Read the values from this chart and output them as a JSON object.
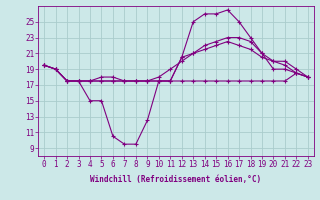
{
  "line1": {
    "x": [
      0,
      1,
      2,
      3,
      4,
      5,
      6,
      7,
      8,
      9,
      10,
      11,
      12,
      13,
      14,
      15,
      16,
      17,
      18,
      19,
      20,
      21,
      22,
      23
    ],
    "y": [
      19.5,
      19.0,
      17.5,
      17.5,
      17.5,
      18.0,
      18.0,
      17.5,
      17.5,
      17.5,
      17.5,
      17.5,
      17.5,
      17.5,
      17.5,
      17.5,
      17.5,
      17.5,
      17.5,
      17.5,
      17.5,
      17.5,
      18.5,
      18.0
    ]
  },
  "line2": {
    "x": [
      0,
      1,
      2,
      3,
      4,
      5,
      6,
      7,
      8,
      9,
      10,
      11,
      12,
      13,
      14,
      15,
      16,
      17,
      18,
      19,
      20,
      21,
      22,
      23
    ],
    "y": [
      19.5,
      19.0,
      17.5,
      17.5,
      15.0,
      15.0,
      10.5,
      9.5,
      9.5,
      12.5,
      17.5,
      17.5,
      20.5,
      25.0,
      26.0,
      26.0,
      26.5,
      25.0,
      23.0,
      21.0,
      19.0,
      19.0,
      18.5,
      18.0
    ]
  },
  "line3": {
    "x": [
      0,
      1,
      2,
      3,
      4,
      5,
      6,
      7,
      8,
      9,
      10,
      11,
      12,
      13,
      14,
      15,
      16,
      17,
      18,
      19,
      20,
      21,
      22,
      23
    ],
    "y": [
      19.5,
      19.0,
      17.5,
      17.5,
      17.5,
      17.5,
      17.5,
      17.5,
      17.5,
      17.5,
      17.5,
      17.5,
      20.5,
      21.0,
      22.0,
      22.5,
      23.0,
      23.0,
      22.5,
      21.0,
      20.0,
      20.0,
      19.0,
      18.0
    ]
  },
  "line4": {
    "x": [
      0,
      1,
      2,
      3,
      4,
      5,
      6,
      7,
      8,
      9,
      10,
      11,
      12,
      13,
      14,
      15,
      16,
      17,
      18,
      19,
      20,
      21,
      22,
      23
    ],
    "y": [
      19.5,
      19.0,
      17.5,
      17.5,
      17.5,
      17.5,
      17.5,
      17.5,
      17.5,
      17.5,
      18.0,
      19.0,
      20.0,
      21.0,
      21.5,
      22.0,
      22.5,
      22.0,
      21.5,
      20.5,
      20.0,
      19.5,
      18.5,
      18.0
    ]
  },
  "color": "#800080",
  "marker": "+",
  "markersize": 3,
  "linewidth": 0.8,
  "markeredgewidth": 0.8,
  "bg_color": "#cce8e8",
  "grid_color": "#aacccc",
  "xlabel": "Windchill (Refroidissement éolien,°C)",
  "xlim": [
    -0.5,
    23.5
  ],
  "ylim": [
    8,
    27
  ],
  "yticks": [
    9,
    11,
    13,
    15,
    17,
    19,
    21,
    23,
    25
  ],
  "xticks": [
    0,
    1,
    2,
    3,
    4,
    5,
    6,
    7,
    8,
    9,
    10,
    11,
    12,
    13,
    14,
    15,
    16,
    17,
    18,
    19,
    20,
    21,
    22,
    23
  ],
  "axis_fontsize": 5.5,
  "tick_fontsize": 5.5
}
